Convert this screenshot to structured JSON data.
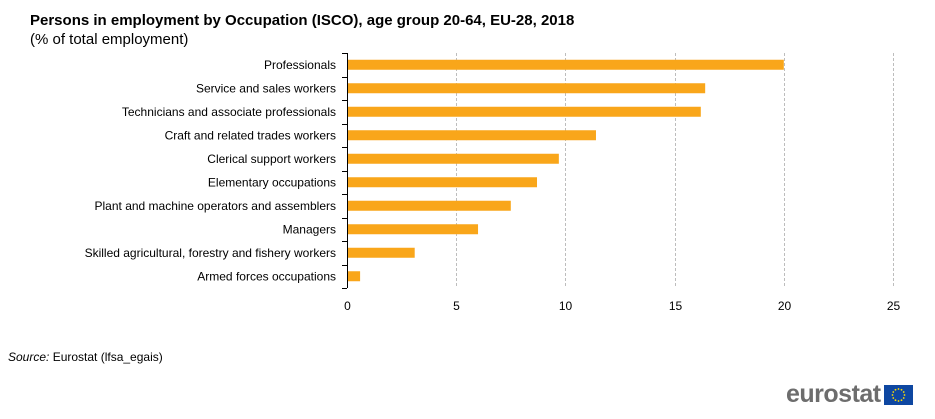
{
  "chart_data": {
    "type": "bar",
    "orientation": "horizontal",
    "title": "Persons in employment by Occupation (ISCO), age group 20-64, EU-28, 2018",
    "subtitle": "(% of total employment)",
    "categories": [
      "Professionals",
      "Service and sales workers",
      "Technicians and associate professionals",
      "Craft and related trades workers",
      "Clerical support workers",
      "Elementary occupations",
      "Plant and machine operators and assemblers",
      "Managers",
      "Skilled agricultural, forestry and fishery workers",
      "Armed forces occupations"
    ],
    "values": [
      20.0,
      16.4,
      16.2,
      11.4,
      9.7,
      8.7,
      7.5,
      6.0,
      3.1,
      0.6
    ],
    "xlim": [
      0,
      25
    ],
    "xticks": [
      "0",
      "5",
      "10",
      "15",
      "20",
      "25"
    ],
    "xlabel": "",
    "ylabel": "",
    "grid": "vertical dashed",
    "bar_color": "#f9a61a"
  },
  "source": {
    "label": "Source:",
    "text": " Eurostat (lfsa_egais)"
  },
  "logo": {
    "text": "eurostat"
  }
}
